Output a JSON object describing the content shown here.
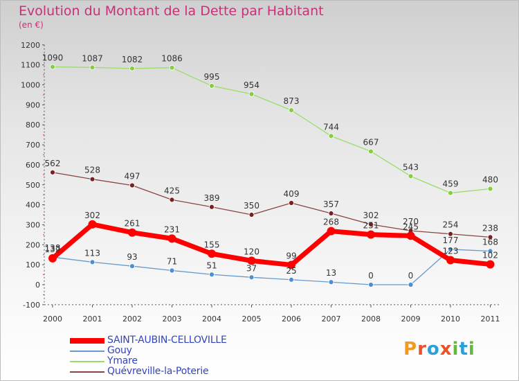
{
  "title": "Evolution du Montant de la Dette par Habitant",
  "subtitle": "(en €)",
  "logo_text": "Proxiti",
  "chart_data": {
    "type": "line",
    "title": "Evolution du Montant de la Dette par Habitant",
    "subtitle": "(en €)",
    "x": [
      "2000",
      "2001",
      "2002",
      "2003",
      "2004",
      "2005",
      "2006",
      "2007",
      "2008",
      "2009",
      "2010",
      "2011"
    ],
    "ylim": [
      -100,
      1200
    ],
    "yticks": [
      "-100",
      "0",
      "100",
      "200",
      "300",
      "400",
      "500",
      "600",
      "700",
      "800",
      "900",
      "1000",
      "1100",
      "1200"
    ],
    "grid": false,
    "legend_position": "bottom-left",
    "series": [
      {
        "name": "SAINT-AUBIN-CELLOVILLE",
        "color": "#ff0000",
        "values": [
          132,
          302,
          261,
          231,
          155,
          120,
          99,
          268,
          251,
          245,
          123,
          102
        ],
        "labels": [
          "132",
          "302",
          "261",
          "231",
          "155",
          "120",
          "99",
          "268",
          "251",
          "245",
          "123",
          "102"
        ]
      },
      {
        "name": "Gouy",
        "color": "#6699cc",
        "values": [
          138,
          113,
          93,
          71,
          51,
          37,
          25,
          13,
          0,
          0,
          177,
          168
        ],
        "labels": [
          "138",
          "113",
          "93",
          "71",
          "51",
          "37",
          "25",
          "13",
          "0",
          "0",
          "177",
          "168"
        ]
      },
      {
        "name": "Ymare",
        "color": "#99dd66",
        "values": [
          1090,
          1087,
          1082,
          1086,
          995,
          954,
          873,
          744,
          667,
          543,
          459,
          480
        ],
        "labels": [
          "1090",
          "1087",
          "1082",
          "1086",
          "995",
          "954",
          "873",
          "744",
          "667",
          "543",
          "459",
          "480"
        ]
      },
      {
        "name": "Quévreville-la-Poterie",
        "color": "#884444",
        "values": [
          562,
          528,
          497,
          425,
          389,
          350,
          409,
          357,
          302,
          270,
          254,
          238
        ],
        "labels": [
          "562",
          "528",
          "497",
          "425",
          "389",
          "350",
          "409",
          "357",
          "302",
          "270",
          "254",
          "238"
        ]
      }
    ]
  },
  "colors": {
    "title": "#c8307a",
    "legend_text": "#3344bb",
    "logo": [
      "#f39a1e",
      "#e8532b",
      "#2a9fd8",
      "#e8532b",
      "#63b83d",
      "#2a9fd8",
      "#63b83d"
    ]
  }
}
